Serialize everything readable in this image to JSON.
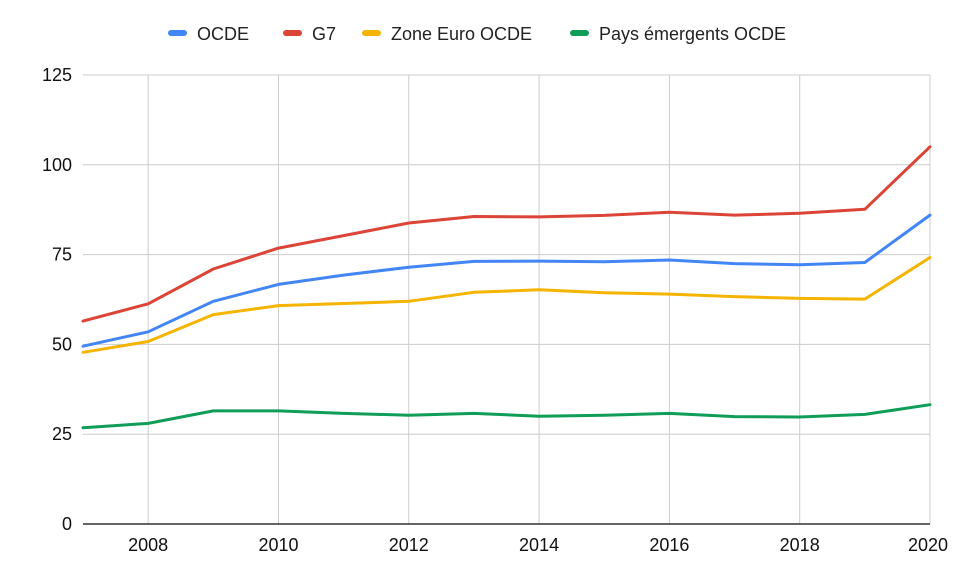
{
  "chart_data": {
    "type": "line",
    "title": "",
    "xlabel": "",
    "ylabel": "",
    "x": [
      2007,
      2008,
      2009,
      2010,
      2011,
      2012,
      2013,
      2014,
      2015,
      2016,
      2017,
      2018,
      2019,
      2020
    ],
    "xlim": [
      2007,
      2020
    ],
    "ylim": [
      0,
      125
    ],
    "x_ticks": [
      "2008",
      "2010",
      "2012",
      "2014",
      "2016",
      "2018",
      "2020"
    ],
    "y_ticks": [
      "0",
      "25",
      "50",
      "75",
      "100",
      "125"
    ],
    "grid": true,
    "legend_position": "top",
    "series": [
      {
        "name": "OCDE",
        "color": "#4285F4",
        "values": [
          49.5,
          53.5,
          62,
          66.7,
          69.3,
          71.5,
          73.1,
          73.2,
          73,
          73.5,
          72.5,
          72.2,
          72.8,
          86
        ]
      },
      {
        "name": "G7",
        "color": "#DB4437",
        "values": [
          56.5,
          61.3,
          71,
          76.8,
          80.3,
          83.8,
          85.6,
          85.5,
          85.9,
          86.8,
          86,
          86.5,
          87.6,
          105
        ]
      },
      {
        "name": "Zone Euro OCDE",
        "color": "#F4B400",
        "values": [
          47.8,
          50.8,
          58.3,
          60.8,
          61.4,
          62,
          64.5,
          65.2,
          64.4,
          64,
          63.3,
          62.8,
          62.6,
          74.2
        ]
      },
      {
        "name": "Pays émergents OCDE",
        "color": "#0F9D58",
        "values": [
          26.8,
          28,
          31.5,
          31.5,
          30.8,
          30.3,
          30.8,
          30,
          30.3,
          30.8,
          29.9,
          29.8,
          30.5,
          33.2
        ]
      }
    ]
  }
}
